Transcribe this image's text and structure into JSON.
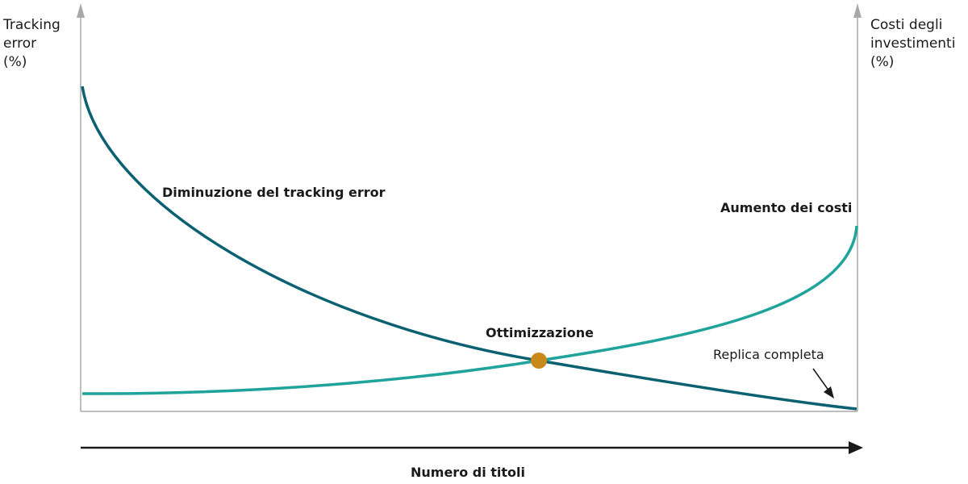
{
  "left_axis": {
    "line1": "Tracking",
    "line2": "error",
    "line3": "(%)"
  },
  "right_axis": {
    "line1": "Costi degli",
    "line2": "investimenti",
    "line3": "(%)"
  },
  "x_axis": {
    "label": "Numero di titoli"
  },
  "annotations": {
    "tracking": "Diminuzione del tracking error",
    "costs": "Aumento dei costi",
    "optimum": "Ottimizzazione",
    "full_replication": "Replica completa"
  },
  "colors": {
    "tracking_curve": "#0b6172",
    "cost_curve": "#1fa39a",
    "optimum_point": "#c8891a",
    "axis": "#a8a8a8"
  }
}
